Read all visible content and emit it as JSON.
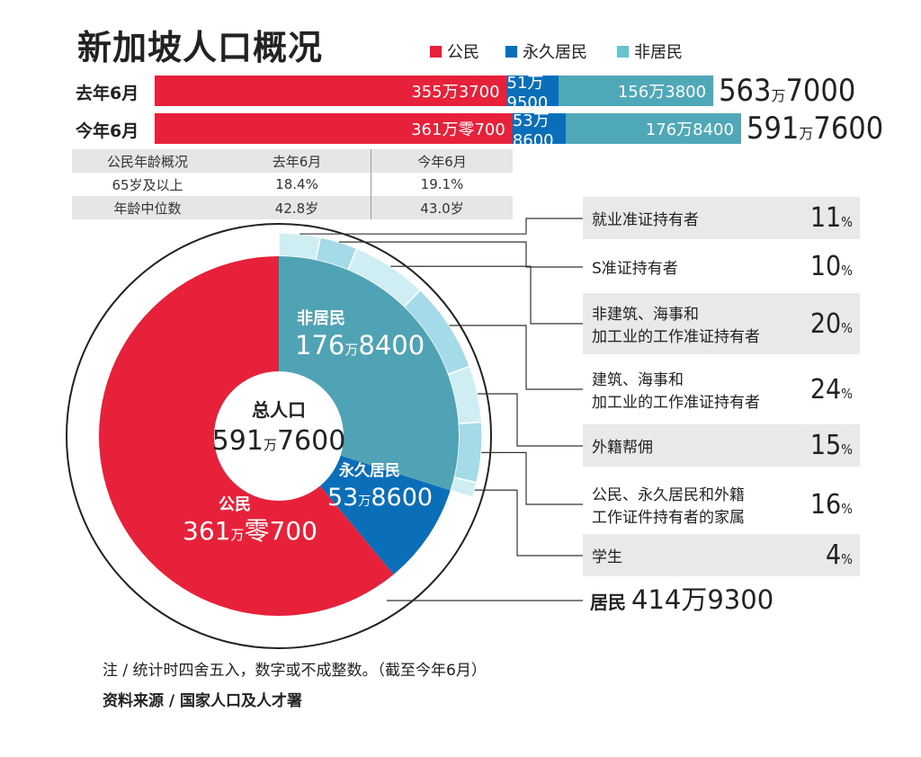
{
  "title": "新加坡人口概况",
  "legend": [
    {
      "label": "公民",
      "color": "#e8213a"
    },
    {
      "label": "永久居民",
      "color": "#0a6fb8"
    },
    {
      "label": "非居民",
      "color": "#66c3cf"
    }
  ],
  "bars": [
    {
      "label": "去年6月",
      "citizen": "355万3700",
      "pr": "51万9500",
      "nonres": "156万3800",
      "total_main": "563",
      "total_unit": "万",
      "total_rest": "7000"
    },
    {
      "label": "今年6月",
      "citizen": "361万零700",
      "pr": "53万8600",
      "nonres": "176万8400",
      "total_main": "591",
      "total_unit": "万",
      "total_rest": "7600"
    }
  ],
  "age_table": {
    "headers": [
      "公民年龄概况",
      "去年6月",
      "今年6月"
    ],
    "rows": [
      [
        "65岁及以上",
        "18.4%",
        "19.1%"
      ],
      [
        "年龄中位数",
        "42.8岁",
        "43.0岁"
      ]
    ]
  },
  "donut": {
    "center_label": "总人口",
    "center_main": "591",
    "center_unit": "万",
    "center_rest": "7600",
    "nonres_label": "非居民",
    "nonres_main": "176",
    "nonres_unit": "万",
    "nonres_rest": "8400",
    "pr_label": "永久居民",
    "pr_main": "53",
    "pr_unit": "万",
    "pr_rest": "8600",
    "citizen_label": "公民",
    "citizen_main": "361",
    "citizen_unit": "万",
    "citizen_rest": "零700",
    "residents_label": "居民",
    "residents_value": "414万9300"
  },
  "categories": [
    {
      "line1": "就业准证持有者",
      "line2": "",
      "pct": "11",
      "unit": "%"
    },
    {
      "line1": "S准证持有者",
      "line2": "",
      "pct": "10",
      "unit": "%"
    },
    {
      "line1": "非建筑、海事和",
      "line2": "加工业的工作准证持有者",
      "pct": "20",
      "unit": "%"
    },
    {
      "line1": "建筑、海事和",
      "line2": "加工业的工作准证持有者",
      "pct": "24",
      "unit": "%"
    },
    {
      "line1": "外籍帮佣",
      "line2": "",
      "pct": "15",
      "unit": "%"
    },
    {
      "line1": "公民、永久居民和外籍",
      "line2": "工作证件持有者的家属",
      "pct": "16",
      "unit": "%"
    },
    {
      "line1": "学生",
      "line2": "",
      "pct": "4",
      "unit": "%"
    }
  ],
  "notes": {
    "note": "注 / 统计时四舍五入，数字或不成整数。（截至今年6月）",
    "source": "资料来源 / 国家人口及人才署"
  },
  "chart_data": {
    "type": "bar",
    "stacked": true,
    "categories": [
      "去年6月",
      "今年6月"
    ],
    "series": [
      {
        "name": "公民",
        "values": [
          3553700,
          3610700
        ]
      },
      {
        "name": "永久居民",
        "values": [
          519500,
          538600
        ]
      },
      {
        "name": "非居民",
        "values": [
          1563800,
          1768400
        ]
      }
    ],
    "totals": [
      5637000,
      5917600
    ],
    "donut": {
      "type": "pie",
      "categories": [
        "公民",
        "永久居民",
        "非居民"
      ],
      "values": [
        3610700,
        538600,
        1768400
      ],
      "total": 5917600,
      "residents_total": 4149300
    },
    "nonresident_breakdown": {
      "type": "pie",
      "categories": [
        "就业准证持有者",
        "S准证持有者",
        "非建筑、海事和加工业的工作准证持有者",
        "建筑、海事和加工业的工作准证持有者",
        "外籍帮佣",
        "公民、永久居民和外籍工作证件持有者的家属",
        "学生"
      ],
      "values": [
        11,
        10,
        20,
        24,
        15,
        16,
        4
      ]
    },
    "age_profile": {
      "type": "table",
      "columns": [
        "去年6月",
        "今年6月"
      ],
      "rows": [
        {
          "name": "65岁及以上",
          "values": [
            18.4,
            19.1
          ]
        },
        {
          "name": "年龄中位数",
          "values": [
            42.8,
            43.0
          ]
        }
      ]
    }
  }
}
